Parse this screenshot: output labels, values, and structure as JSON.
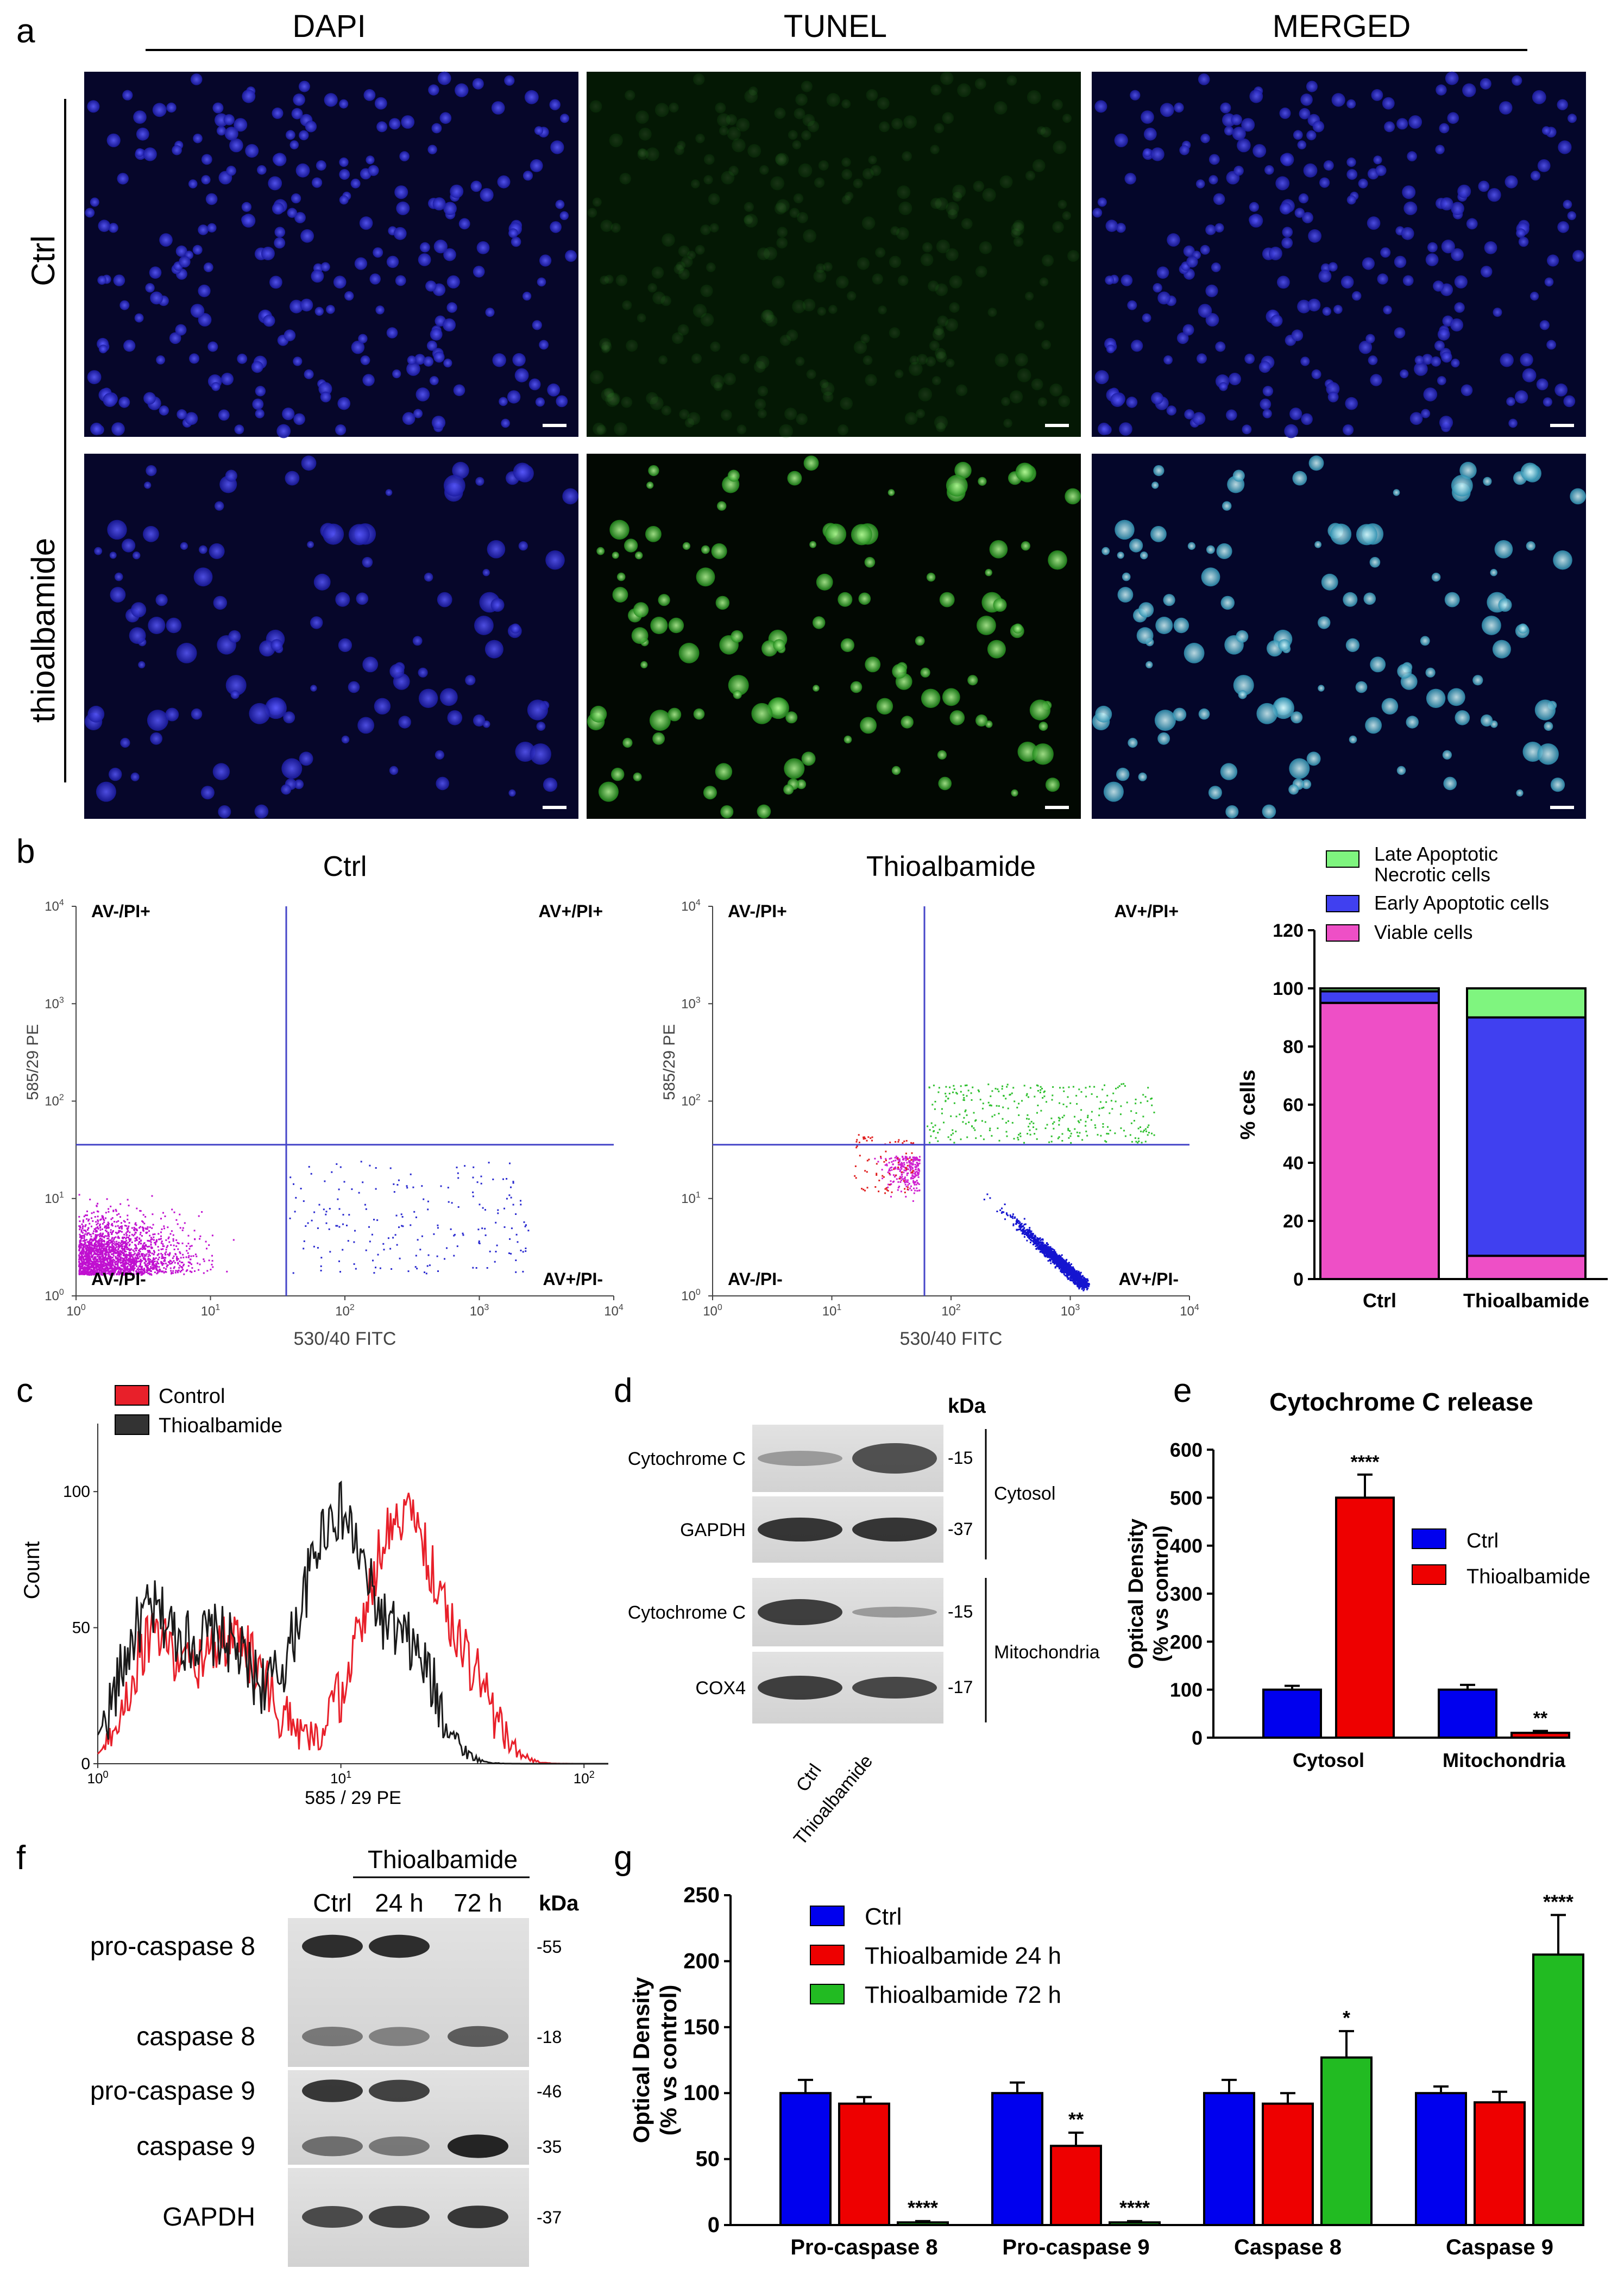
{
  "panel_letters": {
    "a": "a",
    "b": "b",
    "c": "c",
    "d": "d",
    "e": "e",
    "f": "f",
    "g": "g"
  },
  "panel_a": {
    "columns": [
      "DAPI",
      "TUNEL",
      "MERGED"
    ],
    "rows": [
      "Ctrl",
      "thioalbamide"
    ]
  },
  "panel_b": {
    "flow_plots": [
      {
        "title": "Ctrl",
        "ylabel": "585/29 PE",
        "xlabel": "530/40 FITC"
      },
      {
        "title": "Thioalbamide",
        "ylabel": "585/29 PE",
        "xlabel": "530/40 FITC"
      }
    ],
    "quadrants": {
      "ul": "AV-/PI+",
      "ur": "AV+/PI+",
      "ll": "AV-/PI-",
      "lr": "AV+/PI-"
    },
    "tick_base": "10",
    "tick_exps": [
      "0",
      "1",
      "2",
      "3",
      "4"
    ],
    "bar_legend": [
      "Late Apoptotic\nNecrotic cells",
      "Early Apoptotic cells",
      "Viable cells"
    ]
  },
  "panel_c": {
    "legend": [
      "Control",
      "Thioalbamide"
    ],
    "ylabel": "Count",
    "xlabel": "585 / 29 PE",
    "yticks": [
      "0",
      "50",
      "100"
    ],
    "colors": {
      "Control": "#e8202a",
      "Thioalbamide": "#1a1a1a"
    }
  },
  "panel_d": {
    "kda": "kDa",
    "rows": [
      {
        "label": "Cytochrome C",
        "kda": "-15"
      },
      {
        "label": "GAPDH",
        "kda": "-37"
      },
      {
        "label": "Cytochrome C",
        "kda": "-15"
      },
      {
        "label": "COX4",
        "kda": "-17"
      }
    ],
    "groups": [
      "Cytosol",
      "Mitochondria"
    ],
    "lanes": [
      "Ctrl",
      "Thioalbamide"
    ]
  },
  "panel_f": {
    "group_label": "Thioalbamide",
    "lanes": [
      "Ctrl",
      "24 h",
      "72 h"
    ],
    "kda": "kDa",
    "rows": [
      {
        "label": "pro-caspase 8",
        "kda": "-55"
      },
      {
        "label": "caspase 8",
        "kda": "-18"
      },
      {
        "label": "pro-caspase 9",
        "kda": "-46"
      },
      {
        "label": "caspase 9",
        "kda": "-35"
      },
      {
        "label": "GAPDH",
        "kda": "-37"
      }
    ]
  },
  "chart_data": [
    {
      "id": "b-stacked",
      "type": "bar",
      "stacked": true,
      "categories": [
        "Ctrl",
        "Thioalbamide"
      ],
      "ylabel": "% cells",
      "ylim": [
        0,
        120
      ],
      "yticks": [
        0,
        20,
        40,
        60,
        80,
        100,
        120
      ],
      "series": [
        {
          "name": "Viable cells",
          "color": "#ee4fc6",
          "values": [
            95,
            8
          ]
        },
        {
          "name": "Early Apoptotic cells",
          "color": "#4040f0",
          "values": [
            4,
            82
          ]
        },
        {
          "name": "Late Apoptotic\nNecrotic cells",
          "color": "#7ff57f",
          "values": [
            1,
            10
          ]
        }
      ],
      "legend_position": "top"
    },
    {
      "id": "e-bars",
      "type": "bar",
      "title": "Cytochrome C release",
      "categories": [
        "Cytosol",
        "Mitochondria"
      ],
      "ylabel": "Optical Density\n(% vs control)",
      "ylim": [
        0,
        600
      ],
      "yticks": [
        0,
        100,
        200,
        300,
        400,
        500,
        600
      ],
      "series": [
        {
          "name": "Ctrl",
          "color": "#0000ee",
          "values": [
            100,
            100
          ],
          "errors": [
            8,
            10
          ],
          "stars": [
            "",
            ""
          ]
        },
        {
          "name": "Thioalbamide",
          "color": "#ee0000",
          "values": [
            500,
            10
          ],
          "errors": [
            48,
            4
          ],
          "stars": [
            "****",
            "**"
          ]
        }
      ],
      "legend_position": "right"
    },
    {
      "id": "g-bars",
      "type": "bar",
      "categories": [
        "Pro-caspase 8",
        "Pro-caspase 9",
        "Caspase 8",
        "Caspase 9"
      ],
      "ylabel": "Optical Density\n(% vs control)",
      "ylim": [
        0,
        250
      ],
      "yticks": [
        0,
        50,
        100,
        150,
        200,
        250
      ],
      "series": [
        {
          "name": "Ctrl",
          "color": "#0000ee",
          "values": [
            100,
            100,
            100,
            100
          ],
          "errors": [
            10,
            8,
            10,
            5
          ],
          "stars": [
            "",
            "",
            "",
            ""
          ]
        },
        {
          "name": "Thioalbamide 24 h",
          "color": "#ee0000",
          "values": [
            92,
            60,
            92,
            93
          ],
          "errors": [
            5,
            10,
            8,
            8
          ],
          "stars": [
            "",
            "**",
            "",
            ""
          ]
        },
        {
          "name": "Thioalbamide 72 h",
          "color": "#22bb22",
          "values": [
            2,
            2,
            127,
            205
          ],
          "errors": [
            1,
            1,
            20,
            30
          ],
          "stars": [
            "****",
            "****",
            "*",
            "****"
          ]
        }
      ],
      "legend_position": "top-left"
    }
  ]
}
